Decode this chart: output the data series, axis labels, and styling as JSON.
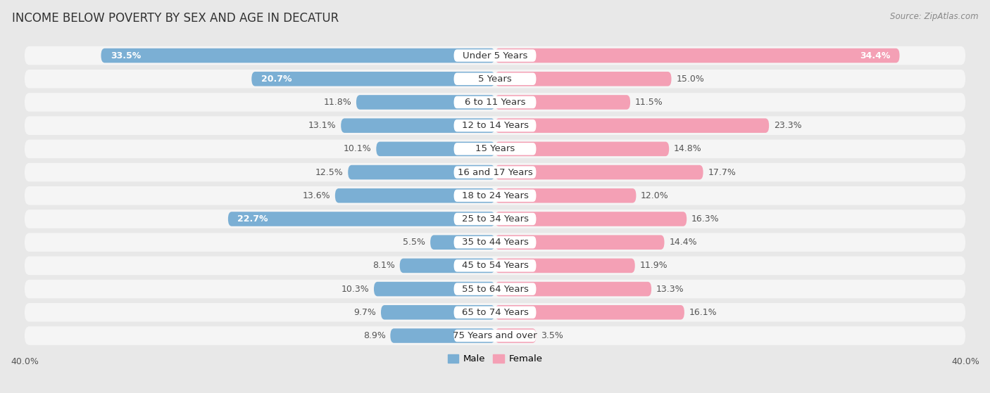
{
  "title": "INCOME BELOW POVERTY BY SEX AND AGE IN DECATUR",
  "source": "Source: ZipAtlas.com",
  "categories": [
    "Under 5 Years",
    "5 Years",
    "6 to 11 Years",
    "12 to 14 Years",
    "15 Years",
    "16 and 17 Years",
    "18 to 24 Years",
    "25 to 34 Years",
    "35 to 44 Years",
    "45 to 54 Years",
    "55 to 64 Years",
    "65 to 74 Years",
    "75 Years and over"
  ],
  "male": [
    33.5,
    20.7,
    11.8,
    13.1,
    10.1,
    12.5,
    13.6,
    22.7,
    5.5,
    8.1,
    10.3,
    9.7,
    8.9
  ],
  "female": [
    34.4,
    15.0,
    11.5,
    23.3,
    14.8,
    17.7,
    12.0,
    16.3,
    14.4,
    11.9,
    13.3,
    16.1,
    3.5
  ],
  "male_color": "#7bafd4",
  "female_color": "#f4a0b5",
  "male_label": "Male",
  "female_label": "Female",
  "axis_limit": 40.0,
  "bg_color": "#e8e8e8",
  "bar_bg_color": "#f5f5f5",
  "title_fontsize": 12,
  "label_fontsize": 9,
  "cat_fontsize": 9.5,
  "tick_fontsize": 9,
  "source_fontsize": 8.5
}
